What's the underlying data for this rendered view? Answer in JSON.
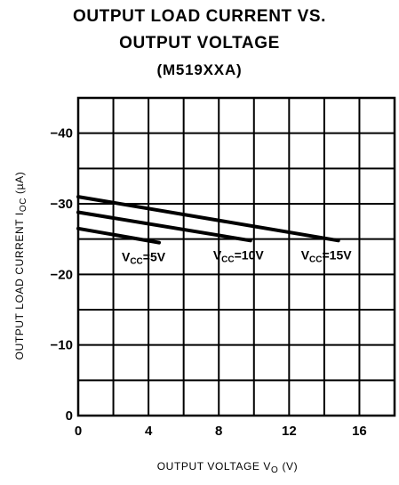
{
  "chart_data": {
    "type": "line",
    "title": "OUTPUT LOAD CURRENT VS.",
    "title_line2": "OUTPUT VOLTAGE",
    "subtitle": "(M519XXA)",
    "xlabel_main": "OUTPUT VOLTAGE  V",
    "xlabel_sub": "O",
    "xlabel_unit": "(V)",
    "ylabel_main": "OUTPUT LOAD CURRENT  I",
    "ylabel_sub": "OC",
    "ylabel_unit": "(µA)",
    "xlim": [
      0,
      18
    ],
    "ylim": [
      0,
      -45
    ],
    "xticks": [
      0,
      4,
      8,
      12,
      16
    ],
    "xtick_labels": [
      "0",
      "4",
      "8",
      "12",
      "16"
    ],
    "yticks": [
      0,
      -10,
      -20,
      -30,
      -40
    ],
    "ytick_labels": [
      "0",
      "−10",
      "−20",
      "−30",
      "−40"
    ],
    "grid": true,
    "series": [
      {
        "vcc_main": "V",
        "vcc_sub": "CC",
        "vcc_value": "=5V",
        "x": [
          0,
          4.6
        ],
        "y": [
          -26.5,
          -24.5
        ]
      },
      {
        "vcc_main": "V",
        "vcc_sub": "CC",
        "vcc_value": "=10V",
        "x": [
          0,
          9.8
        ],
        "y": [
          -28.8,
          -24.8
        ]
      },
      {
        "vcc_main": "V",
        "vcc_sub": "CC",
        "vcc_value": "=15V",
        "x": [
          0,
          14.8
        ],
        "y": [
          -31,
          -24.8
        ]
      }
    ],
    "colors": {
      "line": "#000000",
      "grid": "#000000",
      "background": "#ffffff"
    }
  }
}
